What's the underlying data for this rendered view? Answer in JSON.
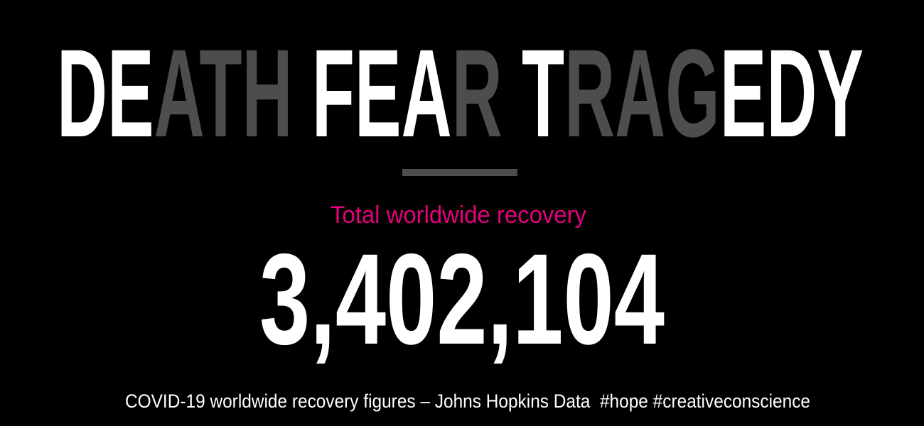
{
  "headline": {
    "segments": [
      {
        "text": "DE",
        "tone": "bright"
      },
      {
        "text": "ATH",
        "tone": "dim"
      },
      {
        "text": " FEA",
        "tone": "bright"
      },
      {
        "text": "R",
        "tone": "dim"
      },
      {
        "text": " T",
        "tone": "bright"
      },
      {
        "text": "RAG",
        "tone": "dim"
      },
      {
        "text": "EDY",
        "tone": "bright"
      }
    ]
  },
  "label": "Total worldwide recovery",
  "figure": "3,402,104",
  "footer": "COVID-19 worldwide recovery figures – Johns Hopkins Data  #hope #creativeconscience"
}
